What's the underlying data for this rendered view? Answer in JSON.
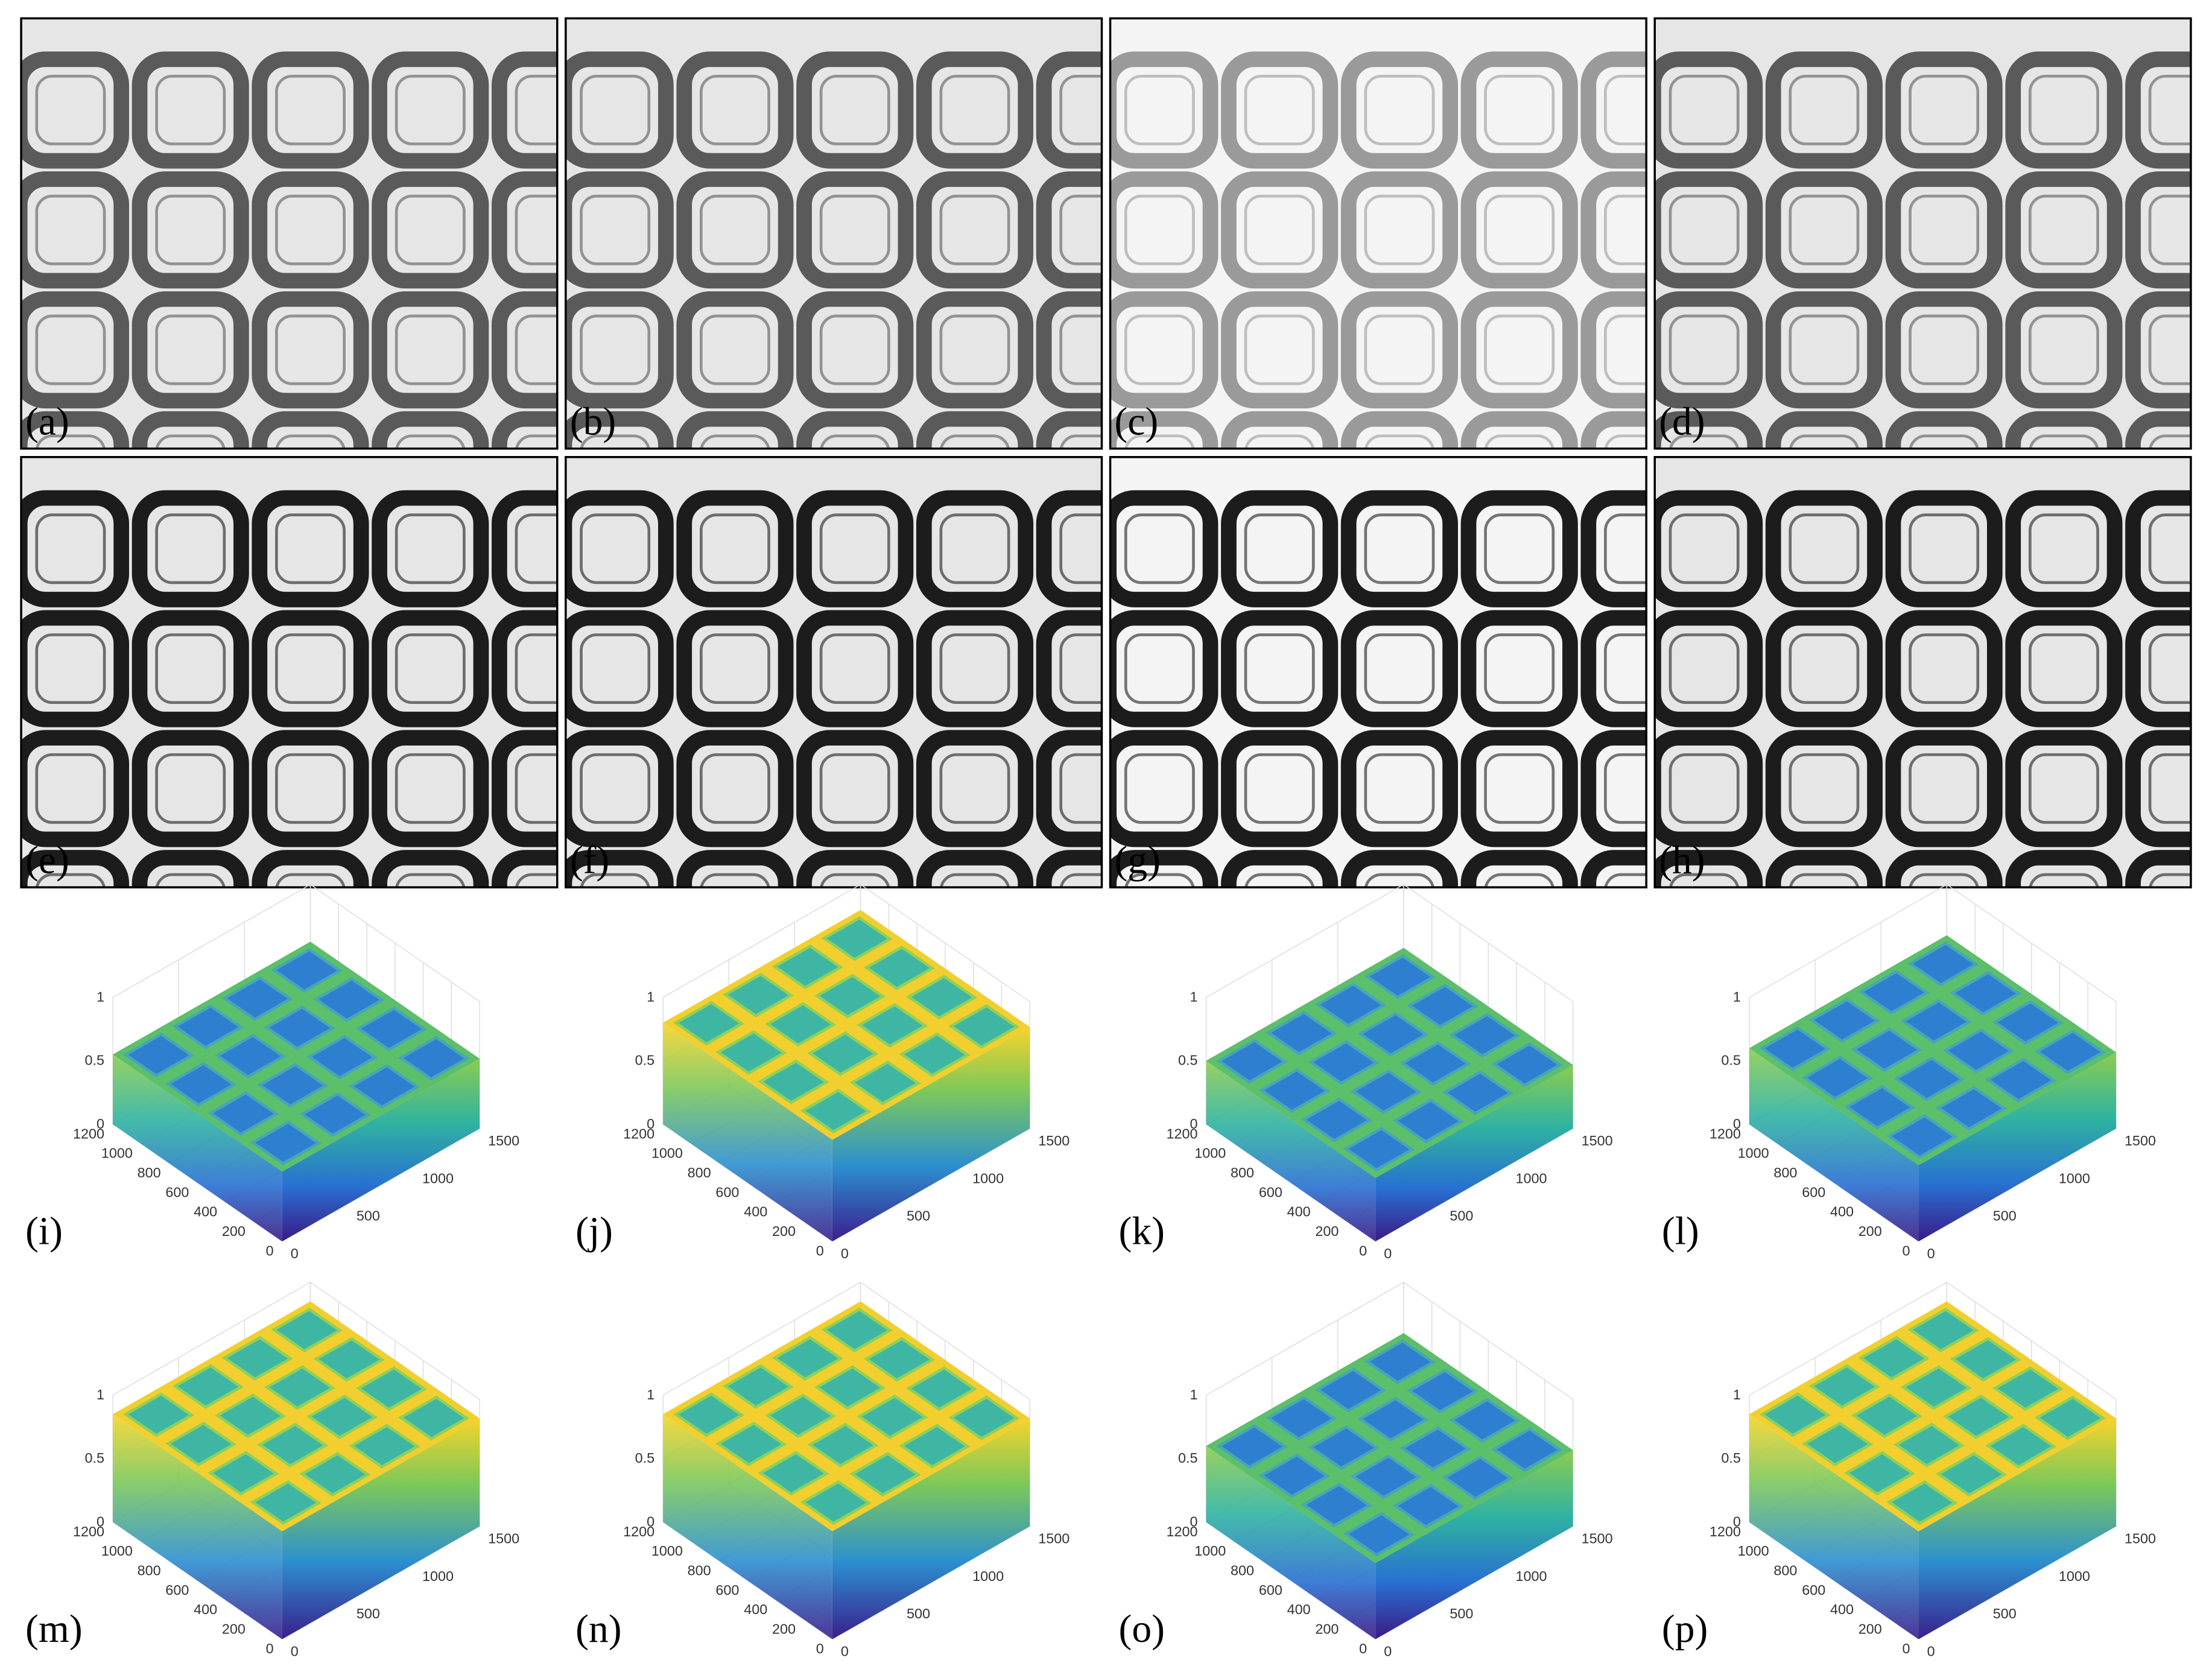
{
  "figure": {
    "panels": [
      {
        "label": "(a)"
      },
      {
        "label": "(b)"
      },
      {
        "label": "(c)"
      },
      {
        "label": "(d)"
      },
      {
        "label": "(e)"
      },
      {
        "label": "(f)"
      },
      {
        "label": "(g)"
      },
      {
        "label": "(h)"
      }
    ],
    "plots": [
      {
        "label": "(i)",
        "zticks": [
          0,
          0.5,
          1
        ],
        "yticks": [
          0,
          200,
          400,
          600,
          800,
          1000,
          1200
        ],
        "xticks": [
          0,
          500,
          1000,
          1500
        ]
      },
      {
        "label": "(j)",
        "zticks": [
          0,
          0.5,
          1
        ],
        "yticks": [
          0,
          200,
          400,
          600,
          800,
          1000,
          1200
        ],
        "xticks": [
          0,
          500,
          1000,
          1500
        ]
      },
      {
        "label": "(k)",
        "zticks": [
          0,
          0.5,
          1
        ],
        "yticks": [
          0,
          200,
          400,
          600,
          800,
          1000,
          1200
        ],
        "xticks": [
          0,
          500,
          1000,
          1500
        ]
      },
      {
        "label": "(l)",
        "zticks": [
          0,
          0.5,
          1
        ],
        "yticks": [
          0,
          200,
          400,
          600,
          800,
          1000,
          1200
        ],
        "xticks": [
          0,
          500,
          1000,
          1500
        ]
      },
      {
        "label": "(m)",
        "zticks": [
          0,
          0.5,
          1
        ],
        "yticks": [
          0,
          200,
          400,
          600,
          800,
          1000,
          1200
        ],
        "xticks": [
          0,
          500,
          1000,
          1500
        ]
      },
      {
        "label": "(n)",
        "zticks": [
          0,
          0.5,
          1
        ],
        "yticks": [
          0,
          200,
          400,
          600,
          800,
          1000,
          1200
        ],
        "xticks": [
          0,
          500,
          1000,
          1500
        ]
      },
      {
        "label": "(o)",
        "zticks": [
          0,
          0.5,
          1
        ],
        "yticks": [
          0,
          200,
          400,
          600,
          800,
          1000,
          1200
        ],
        "xticks": [
          0,
          500,
          1000,
          1500
        ]
      },
      {
        "label": "(p)",
        "zticks": [
          0,
          0.5,
          1
        ],
        "yticks": [
          0,
          200,
          400,
          600,
          800,
          1000,
          1200
        ],
        "xticks": [
          0,
          500,
          1000,
          1500
        ]
      }
    ]
  }
}
